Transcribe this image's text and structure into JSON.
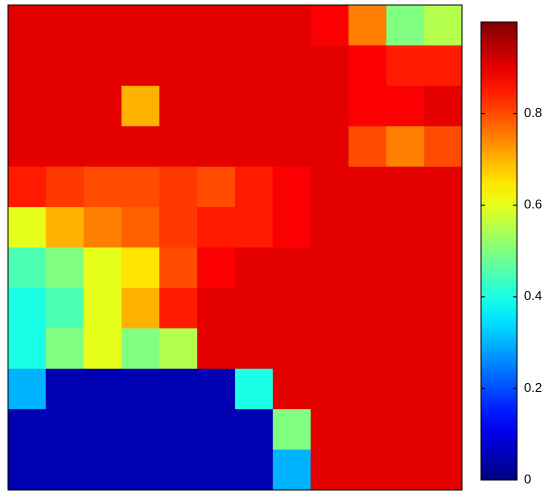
{
  "chart_data": {
    "type": "heatmap",
    "colormap": "jet",
    "z": [
      [
        0.9,
        0.9,
        0.9,
        0.9,
        0.9,
        0.9,
        0.9,
        0.9,
        0.88,
        0.75,
        0.5,
        0.55
      ],
      [
        0.9,
        0.9,
        0.9,
        0.9,
        0.9,
        0.9,
        0.9,
        0.9,
        0.9,
        0.88,
        0.85,
        0.85
      ],
      [
        0.9,
        0.9,
        0.9,
        0.7,
        0.9,
        0.9,
        0.9,
        0.9,
        0.9,
        0.88,
        0.88,
        0.9
      ],
      [
        0.9,
        0.9,
        0.9,
        0.9,
        0.9,
        0.9,
        0.9,
        0.9,
        0.9,
        0.8,
        0.75,
        0.8
      ],
      [
        0.85,
        0.82,
        0.8,
        0.8,
        0.82,
        0.8,
        0.85,
        0.88,
        0.9,
        0.9,
        0.9,
        0.9
      ],
      [
        0.6,
        0.7,
        0.75,
        0.78,
        0.82,
        0.85,
        0.85,
        0.88,
        0.9,
        0.9,
        0.9,
        0.9
      ],
      [
        0.45,
        0.5,
        0.6,
        0.65,
        0.8,
        0.88,
        0.9,
        0.9,
        0.9,
        0.9,
        0.9,
        0.9
      ],
      [
        0.4,
        0.45,
        0.6,
        0.7,
        0.85,
        0.9,
        0.9,
        0.9,
        0.9,
        0.9,
        0.9,
        0.9
      ],
      [
        0.4,
        0.5,
        0.6,
        0.5,
        0.55,
        0.9,
        0.9,
        0.9,
        0.9,
        0.9,
        0.9,
        0.9
      ],
      [
        0.3,
        0.05,
        0.05,
        0.05,
        0.05,
        0.05,
        0.4,
        0.9,
        0.9,
        0.9,
        0.9,
        0.9
      ],
      [
        0.05,
        0.05,
        0.05,
        0.05,
        0.05,
        0.05,
        0.05,
        0.5,
        0.9,
        0.9,
        0.9,
        0.9
      ],
      [
        0.05,
        0.05,
        0.05,
        0.05,
        0.05,
        0.05,
        0.05,
        0.3,
        0.9,
        0.9,
        0.9,
        0.9
      ]
    ],
    "clim": [
      0,
      1
    ],
    "cticks": [
      0,
      0.2,
      0.4,
      0.6,
      0.8
    ]
  }
}
